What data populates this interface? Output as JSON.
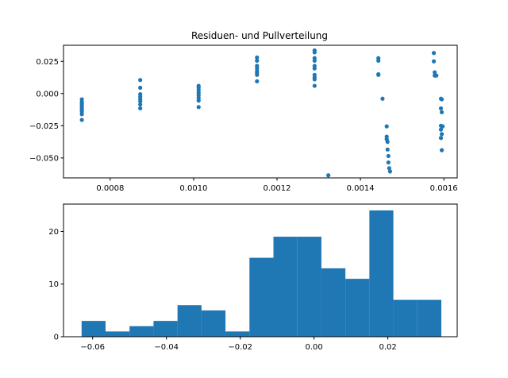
{
  "chart_data": [
    {
      "type": "scatter",
      "title": "Residuen- und Pullverteilung",
      "xlabel": "",
      "ylabel": "",
      "xlim": [
        0.000688,
        0.001632
      ],
      "ylim": [
        -0.0655,
        0.0375
      ],
      "xticks": [
        0.0008,
        0.001,
        0.0012,
        0.0014,
        0.0016
      ],
      "xtick_labels": [
        "0.0008",
        "0.0010",
        "0.0012",
        "0.0014",
        "0.0016"
      ],
      "yticks": [
        0.025,
        0.0,
        -0.025,
        -0.05
      ],
      "ytick_labels": [
        "0.025",
        "0.000",
        "−0.025",
        "−0.050"
      ],
      "color": "#1f77b4",
      "grid": false,
      "points": [
        {
          "x": 0.000732,
          "y": -0.0045
        },
        {
          "x": 0.000732,
          "y": -0.0065
        },
        {
          "x": 0.000732,
          "y": -0.008
        },
        {
          "x": 0.000732,
          "y": -0.0095
        },
        {
          "x": 0.000732,
          "y": -0.011
        },
        {
          "x": 0.000732,
          "y": -0.0125
        },
        {
          "x": 0.000732,
          "y": -0.014
        },
        {
          "x": 0.000732,
          "y": -0.016
        },
        {
          "x": 0.000732,
          "y": -0.0205
        },
        {
          "x": 0.000872,
          "y": 0.0105
        },
        {
          "x": 0.000872,
          "y": 0.0045
        },
        {
          "x": 0.000872,
          "y": -0.0005
        },
        {
          "x": 0.000872,
          "y": -0.0025
        },
        {
          "x": 0.000872,
          "y": -0.0045
        },
        {
          "x": 0.000872,
          "y": -0.006
        },
        {
          "x": 0.000872,
          "y": -0.0085
        },
        {
          "x": 0.000872,
          "y": -0.0115
        },
        {
          "x": 0.001012,
          "y": 0.006
        },
        {
          "x": 0.001012,
          "y": 0.0045
        },
        {
          "x": 0.001012,
          "y": 0.0025
        },
        {
          "x": 0.001012,
          "y": 0.0005
        },
        {
          "x": 0.001012,
          "y": -0.0015
        },
        {
          "x": 0.001012,
          "y": -0.0035
        },
        {
          "x": 0.001012,
          "y": -0.0055
        },
        {
          "x": 0.001012,
          "y": -0.0105
        },
        {
          "x": 0.001152,
          "y": 0.028
        },
        {
          "x": 0.001152,
          "y": 0.0255
        },
        {
          "x": 0.001152,
          "y": 0.0215
        },
        {
          "x": 0.001152,
          "y": 0.0195
        },
        {
          "x": 0.001152,
          "y": 0.0175
        },
        {
          "x": 0.001152,
          "y": 0.016
        },
        {
          "x": 0.001152,
          "y": 0.0145
        },
        {
          "x": 0.001152,
          "y": 0.0095
        },
        {
          "x": 0.00129,
          "y": 0.0335
        },
        {
          "x": 0.00129,
          "y": 0.032
        },
        {
          "x": 0.00129,
          "y": 0.0275
        },
        {
          "x": 0.00129,
          "y": 0.0255
        },
        {
          "x": 0.00129,
          "y": 0.0215
        },
        {
          "x": 0.00129,
          "y": 0.0195
        },
        {
          "x": 0.00129,
          "y": 0.0145
        },
        {
          "x": 0.00129,
          "y": 0.0125
        },
        {
          "x": 0.00129,
          "y": 0.011
        },
        {
          "x": 0.00129,
          "y": 0.006
        },
        {
          "x": 0.001323,
          "y": -0.0635
        },
        {
          "x": 0.001443,
          "y": 0.0275
        },
        {
          "x": 0.001443,
          "y": 0.0255
        },
        {
          "x": 0.001443,
          "y": 0.015
        },
        {
          "x": 0.001443,
          "y": 0.0145
        },
        {
          "x": 0.001453,
          "y": -0.004
        },
        {
          "x": 0.001463,
          "y": -0.0255
        },
        {
          "x": 0.001463,
          "y": -0.0335
        },
        {
          "x": 0.001463,
          "y": -0.0355
        },
        {
          "x": 0.001465,
          "y": -0.0375
        },
        {
          "x": 0.001465,
          "y": -0.0435
        },
        {
          "x": 0.001467,
          "y": -0.0485
        },
        {
          "x": 0.001467,
          "y": -0.0535
        },
        {
          "x": 0.001469,
          "y": -0.058
        },
        {
          "x": 0.001471,
          "y": -0.0605
        },
        {
          "x": 0.001576,
          "y": 0.0315
        },
        {
          "x": 0.001576,
          "y": 0.025
        },
        {
          "x": 0.001578,
          "y": 0.0165
        },
        {
          "x": 0.001578,
          "y": 0.014
        },
        {
          "x": 0.001582,
          "y": 0.014
        },
        {
          "x": 0.001593,
          "y": -0.004
        },
        {
          "x": 0.001595,
          "y": -0.0045
        },
        {
          "x": 0.001593,
          "y": -0.0115
        },
        {
          "x": 0.001595,
          "y": -0.0145
        },
        {
          "x": 0.001593,
          "y": -0.025
        },
        {
          "x": 0.001597,
          "y": -0.0255
        },
        {
          "x": 0.001593,
          "y": -0.028
        },
        {
          "x": 0.001595,
          "y": -0.0315
        },
        {
          "x": 0.001593,
          "y": -0.0345
        },
        {
          "x": 0.001595,
          "y": -0.044
        }
      ]
    },
    {
      "type": "bar",
      "title": "",
      "xlabel": "",
      "ylabel": "",
      "xlim": [
        -0.0679,
        0.0388
      ],
      "ylim": [
        0,
        25.2
      ],
      "xticks": [
        -0.06,
        -0.04,
        -0.02,
        0.0,
        0.02
      ],
      "xtick_labels": [
        "−0.06",
        "−0.04",
        "−0.02",
        "0.00",
        "0.02"
      ],
      "yticks": [
        0,
        10,
        20
      ],
      "ytick_labels": [
        "0",
        "10",
        "20"
      ],
      "color": "#1f77b4",
      "grid": false,
      "bin_edges": [
        -0.063,
        -0.0565,
        -0.05,
        -0.0435,
        -0.037,
        -0.0305,
        -0.024,
        -0.0175,
        -0.011,
        -0.0045,
        0.002,
        0.0085,
        0.015,
        0.0215,
        0.028,
        0.0345
      ],
      "counts": [
        3,
        1,
        2,
        3,
        6,
        5,
        1,
        15,
        19,
        19,
        13,
        11,
        24,
        7,
        7
      ]
    }
  ]
}
